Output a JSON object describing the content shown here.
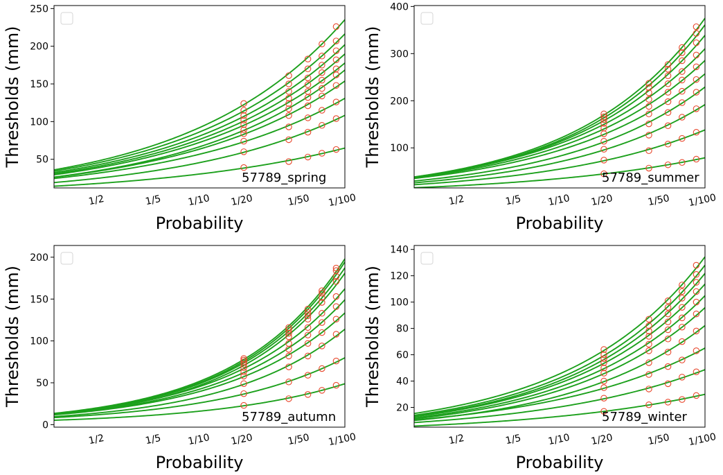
{
  "figure": {
    "background": "#ffffff",
    "curve_color": "#1ca01c",
    "marker_color": "#e8462b"
  },
  "chart_data": [
    {
      "type": "line",
      "panel": "57789_spring",
      "xlabel": "Probability",
      "ylabel": "Thresholds (mm)",
      "x_scale": "log of return period",
      "x_ticks": [
        "1/2",
        "1/5",
        "1/10",
        "1/20",
        "1/50",
        "1/100"
      ],
      "return_periods": [
        2,
        5,
        10,
        20,
        50
      ],
      "x_extent_return_period": [
        1.02,
        100
      ],
      "ylim": [
        12,
        254
      ],
      "y_ticks": [
        50,
        100,
        150,
        200,
        250
      ],
      "legend": "top-left, empty",
      "series": [
        {
          "values": [
            39,
            47,
            53,
            58,
            63
          ]
        },
        {
          "values": [
            60,
            76,
            86,
            95,
            104
          ]
        },
        {
          "values": [
            74,
            93,
            105,
            115,
            126
          ]
        },
        {
          "values": [
            84,
            108,
            121,
            134,
            148
          ]
        },
        {
          "values": [
            89,
            117,
            132,
            144,
            162
          ]
        },
        {
          "values": [
            96,
            124,
            140,
            155,
            170
          ]
        },
        {
          "values": [
            102,
            131,
            149,
            165,
            182
          ]
        },
        {
          "values": [
            108,
            140,
            158,
            175,
            194
          ]
        },
        {
          "values": [
            115,
            150,
            170,
            187,
            207
          ]
        },
        {
          "values": [
            124,
            161,
            183,
            203,
            226
          ]
        }
      ]
    },
    {
      "type": "line",
      "panel": "57789_summer",
      "xlabel": "Probability",
      "ylabel": "Thresholds (mm)",
      "x_scale": "log of return period",
      "x_ticks": [
        "1/2",
        "1/5",
        "1/10",
        "1/20",
        "1/50",
        "1/100"
      ],
      "return_periods": [
        2,
        5,
        10,
        20,
        50
      ],
      "x_extent_return_period": [
        1.02,
        100
      ],
      "ylim": [
        15,
        402
      ],
      "y_ticks": [
        100,
        200,
        300,
        400
      ],
      "legend": "top-left, empty",
      "series": [
        {
          "values": [
            45,
            57,
            64,
            69,
            76
          ]
        },
        {
          "values": [
            74,
            94,
            108,
            120,
            133
          ]
        },
        {
          "values": [
            97,
            127,
            147,
            165,
            183
          ]
        },
        {
          "values": [
            114,
            151,
            175,
            196,
            218
          ]
        },
        {
          "values": [
            130,
            172,
            198,
            220,
            245
          ]
        },
        {
          "values": [
            142,
            188,
            218,
            244,
            272
          ]
        },
        {
          "values": [
            152,
            203,
            236,
            262,
            297
          ]
        },
        {
          "values": [
            160,
            217,
            253,
            285,
            323
          ]
        },
        {
          "values": [
            166,
            228,
            267,
            302,
            343
          ]
        },
        {
          "values": [
            172,
            237,
            277,
            313,
            357
          ]
        }
      ]
    },
    {
      "type": "line",
      "panel": "57789_autumn",
      "xlabel": "Probability",
      "ylabel": "Thresholds (mm)",
      "x_scale": "log of return period",
      "x_ticks": [
        "1/2",
        "1/5",
        "1/10",
        "1/20",
        "1/50",
        "1/100"
      ],
      "return_periods": [
        2,
        5,
        10,
        20,
        50
      ],
      "x_extent_return_period": [
        1.02,
        100
      ],
      "ylim": [
        -3,
        214
      ],
      "y_ticks": [
        0,
        50,
        100,
        150,
        200
      ],
      "legend": "top-left, empty",
      "series": [
        {
          "values": [
            23,
            31,
            36,
            41,
            47
          ]
        },
        {
          "values": [
            37,
            51,
            59,
            67,
            76
          ]
        },
        {
          "values": [
            49,
            69,
            82,
            94,
            108
          ]
        },
        {
          "values": [
            58,
            82,
            97,
            110,
            126
          ]
        },
        {
          "values": [
            63,
            90,
            107,
            122,
            141
          ]
        },
        {
          "values": [
            68,
            97,
            116,
            133,
            153
          ]
        },
        {
          "values": [
            72,
            105,
            126,
            146,
            171
          ]
        },
        {
          "values": [
            75,
            109,
            130,
            152,
            177
          ]
        },
        {
          "values": [
            77,
            113,
            134,
            157,
            184
          ]
        },
        {
          "values": [
            79,
            116,
            138,
            160,
            187
          ]
        }
      ]
    },
    {
      "type": "line",
      "panel": "57789_winter",
      "xlabel": "Probability",
      "ylabel": "Thresholds (mm)",
      "x_scale": "log of return period",
      "x_ticks": [
        "1/2",
        "1/5",
        "1/10",
        "1/20",
        "1/50",
        "1/100"
      ],
      "return_periods": [
        2,
        5,
        10,
        20,
        50
      ],
      "x_extent_return_period": [
        1.02,
        100
      ],
      "ylim": [
        5,
        143
      ],
      "y_ticks": [
        20,
        40,
        60,
        80,
        100,
        120,
        140
      ],
      "legend": "top-left, empty",
      "series": [
        {
          "values": [
            17,
            22,
            24,
            26,
            29
          ]
        },
        {
          "values": [
            27,
            34,
            38,
            43,
            47
          ]
        },
        {
          "values": [
            35,
            45,
            51,
            56,
            63
          ]
        },
        {
          "values": [
            40,
            54,
            62,
            70,
            78
          ]
        },
        {
          "values": [
            46,
            63,
            72,
            81,
            91
          ]
        },
        {
          "values": [
            50,
            68,
            79,
            88,
            100
          ]
        },
        {
          "values": [
            54,
            74,
            85,
            96,
            108
          ]
        },
        {
          "values": [
            57,
            78,
            91,
            103,
            115
          ]
        },
        {
          "values": [
            60,
            82,
            96,
            108,
            121
          ]
        },
        {
          "values": [
            64,
            87,
            101,
            113,
            128
          ]
        }
      ]
    }
  ]
}
